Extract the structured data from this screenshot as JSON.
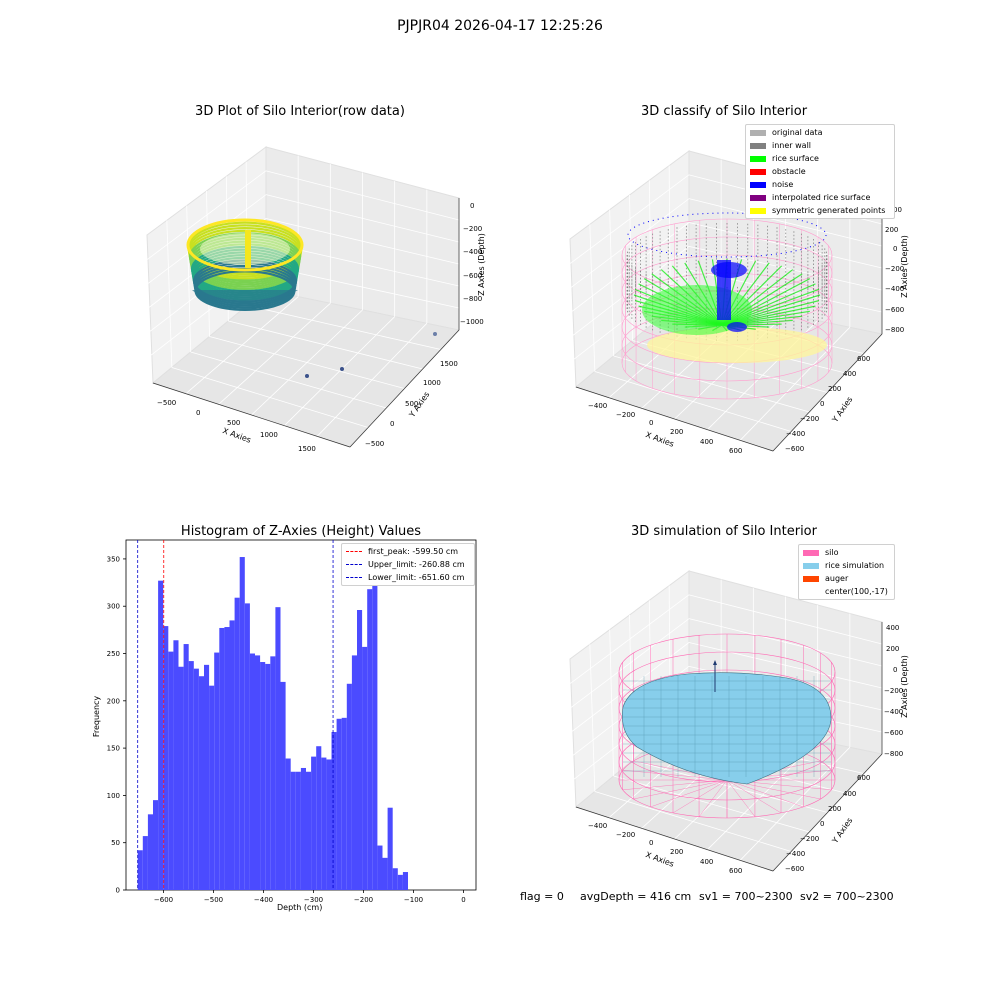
{
  "suptitle": "PJPJR04 2026-04-17 12:25:26",
  "colors": {
    "original": "#b0b0b0",
    "inner_wall": "#808080",
    "rice_surface": "#00ff00",
    "obstacle": "#ff0000",
    "noise": "#0000ff",
    "interp_rice": "#800080",
    "symmetric": "#ffff00",
    "silo": "#ff69b4",
    "rice_sim": "#87ceeb",
    "auger": "#ff4500",
    "hist_bar": "#4b4bff",
    "first_peak": "#ff0000",
    "limits": "#0000cc"
  },
  "plot1": {
    "title": "3D Plot of Silo Interior(row data)",
    "xlabel": "X Axies",
    "ylabel": "Y Axies",
    "zlabel": "Z Axies (Depth)",
    "xticks": [
      "−500",
      "0",
      "500",
      "1000",
      "1500"
    ],
    "yticks": [
      "−500",
      "0",
      "500",
      "1000",
      "1500"
    ],
    "zticks": [
      "0",
      "−200",
      "−400",
      "−600",
      "−800",
      "−1000"
    ]
  },
  "plot2": {
    "title": "3D classify of Silo Interior",
    "xlabel": "X Axies",
    "ylabel": "Y Axies",
    "zlabel": "Z Axies (Depth)",
    "xticks": [
      "−400",
      "−200",
      "0",
      "200",
      "400",
      "600"
    ],
    "yticks": [
      "−600",
      "−400",
      "−200",
      "0",
      "200",
      "400",
      "600"
    ],
    "zticks": [
      "200",
      "0",
      "−200",
      "−400",
      "−600",
      "−800"
    ],
    "zticks_partial": "00",
    "legend": [
      {
        "label": "original data",
        "color": "#b0b0b0"
      },
      {
        "label": "inner wall",
        "color": "#808080"
      },
      {
        "label": "rice surface",
        "color": "#00ff00"
      },
      {
        "label": "obstacle",
        "color": "#ff0000"
      },
      {
        "label": "noise",
        "color": "#0000ff"
      },
      {
        "label": "interpolated rice surface",
        "color": "#800080"
      },
      {
        "label": "symmetric generated points",
        "color": "#ffff00"
      }
    ]
  },
  "plot4": {
    "title": "3D simulation of Silo Interior",
    "xlabel": "X Axies",
    "ylabel": "Y Axies",
    "zlabel": "Z Axies (Depth)",
    "xticks": [
      "−400",
      "−200",
      "0",
      "200",
      "400",
      "600"
    ],
    "yticks": [
      "−600",
      "−400",
      "−200",
      "0",
      "200",
      "400",
      "600"
    ],
    "zticks": [
      "400",
      "200",
      "0",
      "−200",
      "−400",
      "−600",
      "−800"
    ],
    "legend": [
      {
        "label": "silo",
        "color": "#ff69b4"
      },
      {
        "label": "rice simulation",
        "color": "#87ceeb"
      },
      {
        "label": "auger",
        "color": "#ff4500"
      },
      {
        "label": "center(100,-17)",
        "color": ""
      }
    ]
  },
  "status": {
    "flag": "flag = 0",
    "avg_depth": "avgDepth = 416 cm",
    "sv1": "sv1 = 700~2300",
    "sv2": "sv2 = 700~2300"
  },
  "chart_data": {
    "type": "bar",
    "title": "Histogram of Z-Axies (Height) Values",
    "xlabel": "Depth (cm)",
    "ylabel": "Frequency",
    "xlim": [
      -675,
      25
    ],
    "ylim": [
      0,
      370
    ],
    "xticks": [
      -600,
      -500,
      -400,
      -300,
      -200,
      -100,
      0
    ],
    "yticks": [
      0,
      50,
      100,
      150,
      200,
      250,
      300,
      350
    ],
    "bin_start": -651.6,
    "bin_width": 10.2,
    "values": [
      42,
      57,
      80,
      95,
      327,
      279,
      252,
      264,
      236,
      260,
      242,
      234,
      226,
      238,
      216,
      251,
      277,
      278,
      285,
      309,
      352,
      303,
      250,
      248,
      241,
      239,
      247,
      299,
      220,
      139,
      125,
      125,
      129,
      125,
      141,
      152,
      140,
      138,
      167,
      181,
      182,
      218,
      248,
      296,
      257,
      318,
      335,
      47,
      34,
      87,
      23,
      16,
      19
    ],
    "vlines": [
      {
        "label": "first_peak: -599.50 cm",
        "x": -599.5,
        "color": "#ff0000"
      },
      {
        "label": "Upper_limit: -260.88 cm",
        "x": -260.88,
        "color": "#0000cc"
      },
      {
        "label": "Lower_limit: -651.60 cm",
        "x": -651.6,
        "color": "#0000cc"
      }
    ]
  }
}
